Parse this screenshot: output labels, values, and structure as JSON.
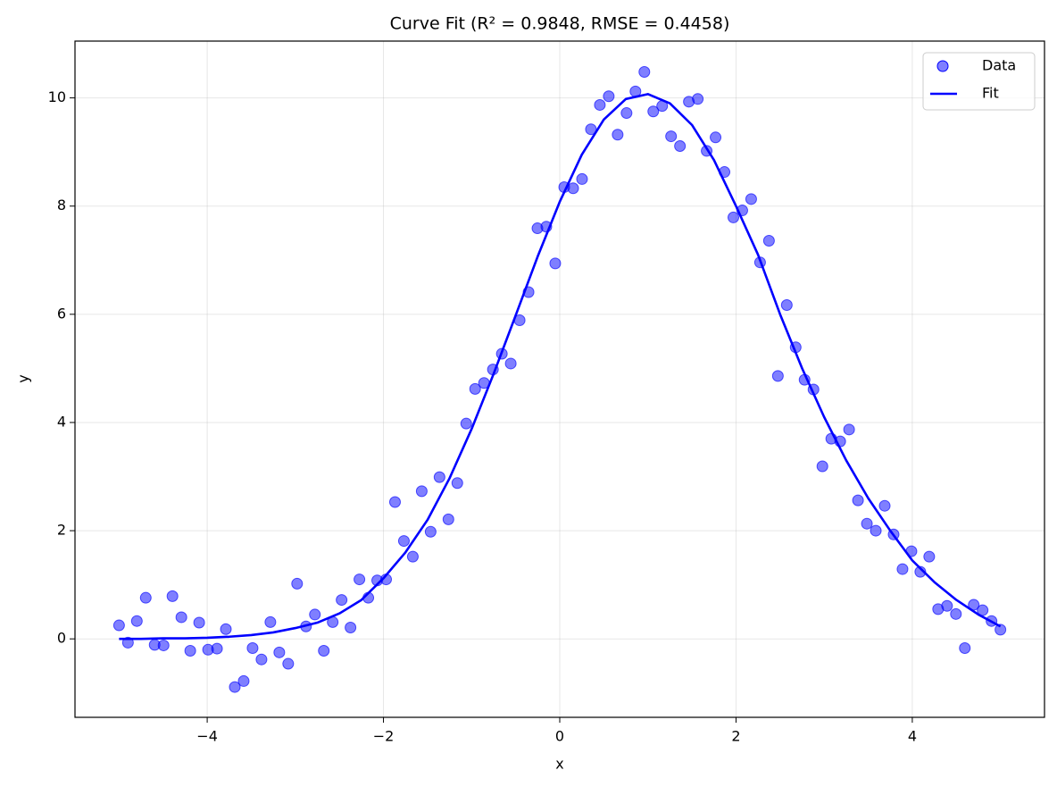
{
  "chart_data": {
    "type": "scatter",
    "title": "Curve Fit (R² = 0.9848, RMSE = 0.4458)",
    "x_label": "x",
    "y_label": "y",
    "xlim": [
      -5.5,
      5.5
    ],
    "ylim": [
      -1.45,
      11.05
    ],
    "xticks": [
      {
        "value": -4,
        "label": "−4"
      },
      {
        "value": -2,
        "label": "−2"
      },
      0,
      2,
      4
    ],
    "yticks": [
      0,
      2,
      4,
      6,
      8,
      10
    ],
    "grid": true,
    "legend": "upper right",
    "series": [
      {
        "name": "Data",
        "type": "scatter",
        "color": "#0000ff",
        "alpha": 0.5,
        "x": [
          -5,
          -4.899,
          -4.798,
          -4.697,
          -4.596,
          -4.495,
          -4.394,
          -4.293,
          -4.192,
          -4.091,
          -3.99,
          -3.889,
          -3.788,
          -3.687,
          -3.586,
          -3.485,
          -3.384,
          -3.283,
          -3.182,
          -3.081,
          -2.98,
          -2.879,
          -2.778,
          -2.677,
          -2.576,
          -2.475,
          -2.374,
          -2.273,
          -2.172,
          -2.071,
          -1.97,
          -1.869,
          -1.768,
          -1.667,
          -1.566,
          -1.465,
          -1.364,
          -1.263,
          -1.162,
          -1.061,
          -0.96,
          -0.859,
          -0.758,
          -0.657,
          -0.556,
          -0.455,
          -0.354,
          -0.253,
          -0.152,
          -0.051,
          0.051,
          0.152,
          0.253,
          0.354,
          0.455,
          0.556,
          0.657,
          0.758,
          0.859,
          0.96,
          1.061,
          1.162,
          1.263,
          1.364,
          1.465,
          1.566,
          1.667,
          1.768,
          1.869,
          1.97,
          2.071,
          2.172,
          2.273,
          2.374,
          2.475,
          2.576,
          2.677,
          2.778,
          2.879,
          2.98,
          3.081,
          3.182,
          3.283,
          3.384,
          3.485,
          3.586,
          3.687,
          3.788,
          3.889,
          3.99,
          4.091,
          4.192,
          4.293,
          4.394,
          4.495,
          4.596,
          4.697,
          4.798,
          4.899,
          5
        ],
        "values": [
          0.25,
          -0.07,
          0.33,
          0.76,
          -0.11,
          -0.12,
          0.79,
          0.4,
          -0.22,
          0.3,
          -0.2,
          -0.18,
          0.18,
          -0.89,
          -0.78,
          -0.17,
          -0.38,
          0.31,
          -0.25,
          -0.46,
          1.02,
          0.23,
          0.45,
          -0.22,
          0.31,
          0.72,
          0.21,
          1.1,
          0.76,
          1.08,
          1.1,
          2.53,
          1.81,
          1.52,
          2.73,
          1.98,
          2.99,
          2.21,
          2.88,
          3.98,
          4.62,
          4.73,
          4.98,
          5.27,
          5.09,
          5.89,
          6.41,
          7.59,
          7.62,
          6.94,
          8.35,
          8.33,
          8.5,
          9.42,
          9.87,
          10.03,
          9.32,
          9.72,
          10.12,
          10.48,
          9.75,
          9.85,
          9.29,
          9.11,
          9.93,
          9.98,
          9.02,
          9.27,
          8.63,
          7.79,
          7.92,
          8.13,
          6.96,
          7.36,
          4.86,
          6.17,
          5.39,
          4.79,
          4.61,
          3.19,
          3.7,
          3.65,
          3.87,
          2.56,
          2.13,
          2,
          2.46,
          1.93,
          1.29,
          1.62,
          1.24,
          1.52,
          0.55,
          0.61,
          0.46,
          -0.17,
          0.63,
          0.53,
          0.33,
          0.17
        ]
      },
      {
        "name": "Fit",
        "type": "line",
        "color": "#0000ff",
        "x": [
          -5,
          -4.75,
          -4.5,
          -4.25,
          -4,
          -3.75,
          -3.5,
          -3.25,
          -3,
          -2.75,
          -2.5,
          -2.25,
          -2,
          -1.75,
          -1.5,
          -1.25,
          -1,
          -0.75,
          -0.5,
          -0.25,
          0,
          0.25,
          0.5,
          0.75,
          1,
          1.25,
          1.5,
          1.75,
          2,
          2.25,
          2.5,
          2.75,
          3,
          3.25,
          3.5,
          3.75,
          4,
          4.25,
          4.5,
          4.75,
          5
        ],
        "values": [
          0,
          0,
          0.01,
          0.01,
          0.02,
          0.04,
          0.07,
          0.12,
          0.2,
          0.3,
          0.47,
          0.72,
          1.12,
          1.6,
          2.2,
          2.97,
          3.88,
          4.9,
          5.98,
          7.07,
          8.08,
          8.95,
          9.6,
          9.98,
          10.07,
          9.9,
          9.5,
          8.85,
          8.0,
          7.1,
          6.0,
          5.0,
          4.1,
          3.3,
          2.6,
          2.0,
          1.45,
          1.05,
          0.72,
          0.45,
          0.23
        ]
      }
    ]
  }
}
